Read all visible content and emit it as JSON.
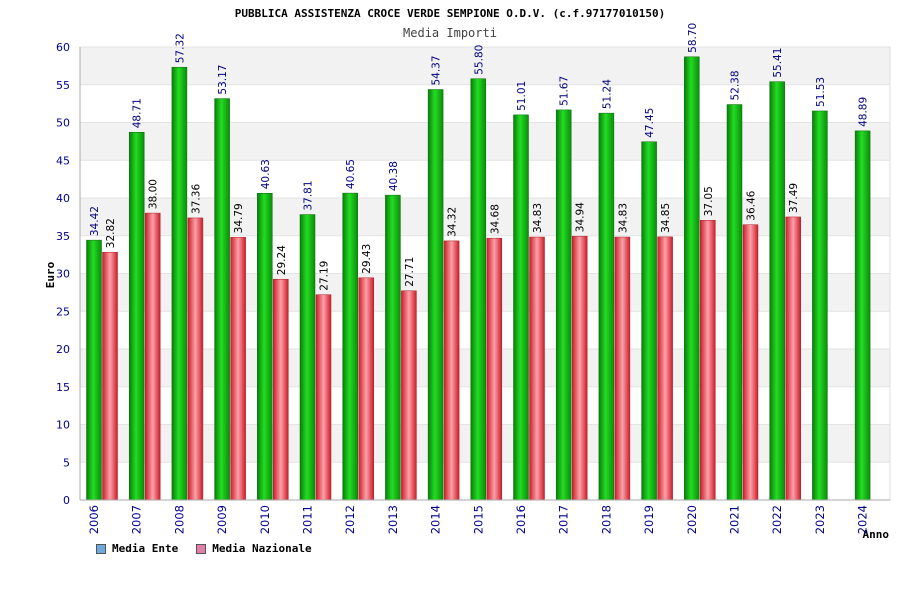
{
  "colors": {
    "ente": "#19c019",
    "nazionale": "#ee4a57",
    "legend_ente": "#6fa8dc",
    "legend_nazionale": "#e27fa8",
    "axis_text": "#00008b",
    "band": "#f2f2f2"
  },
  "chart_data": {
    "type": "bar",
    "title": "PUBBLICA ASSISTENZA CROCE VERDE SEMPIONE O.D.V. (c.f.97177010150)",
    "subtitle": "Media Importi",
    "xlabel": "Anno",
    "ylabel": "Euro",
    "ylim": [
      0,
      60
    ],
    "yticks": [
      0,
      5,
      10,
      15,
      20,
      25,
      30,
      35,
      40,
      45,
      50,
      55,
      60
    ],
    "categories": [
      "2006",
      "2007",
      "2008",
      "2009",
      "2010",
      "2011",
      "2012",
      "2013",
      "2014",
      "2015",
      "2016",
      "2017",
      "2018",
      "2019",
      "2020",
      "2021",
      "2022",
      "2023",
      "2024"
    ],
    "series": [
      {
        "name": "Media Ente",
        "values": [
          34.42,
          48.71,
          57.32,
          53.17,
          40.63,
          37.81,
          40.65,
          40.38,
          54.37,
          55.8,
          51.01,
          51.67,
          51.24,
          47.45,
          58.7,
          52.38,
          55.41,
          51.53,
          48.89
        ],
        "labels": [
          "34.42",
          "48.71",
          "57.32",
          "53.17",
          "40.63",
          "37.81",
          "40.65",
          "40.38",
          "54.37",
          "55.80",
          "51.01",
          "51.67",
          "51.24",
          "47.45",
          "58.70",
          "52.38",
          "55.41",
          "51.53",
          "48.89"
        ]
      },
      {
        "name": "Media Nazionale",
        "values": [
          32.82,
          38.0,
          37.36,
          34.79,
          29.24,
          27.19,
          29.43,
          27.71,
          34.32,
          34.68,
          34.83,
          34.94,
          34.83,
          34.85,
          37.05,
          36.46,
          37.49,
          null,
          null
        ],
        "labels": [
          "32.82",
          "38.00",
          "37.36",
          "34.79",
          "29.24",
          "27.19",
          "29.43",
          "27.71",
          "34.32",
          "34.68",
          "34.83",
          "34.94",
          "34.83",
          "34.85",
          "37.05",
          "36.46",
          "37.49",
          "",
          ""
        ]
      }
    ],
    "grid": true,
    "legend_position": "bottom-left"
  }
}
